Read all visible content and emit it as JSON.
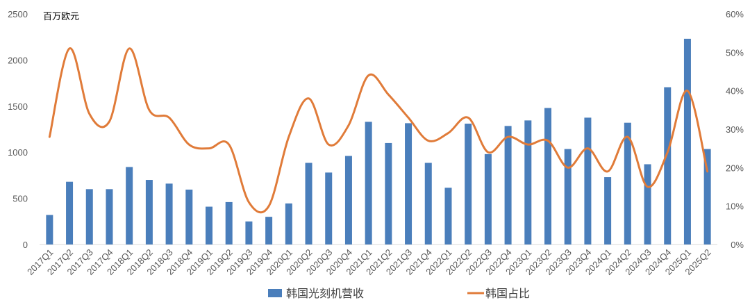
{
  "chart_data": {
    "type": "bar",
    "unit_label": "百万欧元",
    "categories": [
      "2017Q1",
      "2017Q2",
      "2017Q3",
      "2017Q4",
      "2018Q1",
      "2018Q2",
      "2018Q3",
      "2018Q4",
      "2019Q1",
      "2019Q2",
      "2019Q3",
      "2019Q4",
      "2020Q1",
      "2020Q2",
      "2020Q3",
      "2020Q4",
      "2021Q1",
      "2021Q2",
      "2021Q3",
      "2021Q4",
      "2022Q1",
      "2022Q2",
      "2022Q3",
      "2022Q4",
      "2023Q1",
      "2023Q2",
      "2023Q3",
      "2023Q4",
      "2024Q1",
      "2024Q2",
      "2024Q3",
      "2024Q4",
      "2025Q1",
      "2025Q2"
    ],
    "series": [
      {
        "name": "韩国光刻机营收",
        "type": "bar",
        "axis": "left",
        "color": "#4A7EBB",
        "values": [
          320,
          680,
          600,
          600,
          840,
          700,
          660,
          595,
          410,
          460,
          250,
          300,
          445,
          885,
          780,
          960,
          1330,
          1100,
          1315,
          885,
          615,
          1310,
          980,
          1285,
          1345,
          1480,
          1035,
          1375,
          730,
          1320,
          870,
          1705,
          2230,
          1035
        ]
      },
      {
        "name": "韩国占比",
        "type": "line",
        "axis": "right",
        "color": "#E07B39",
        "values": [
          28,
          51,
          34,
          32,
          51,
          35,
          33,
          26,
          25,
          26,
          11,
          10,
          28,
          38,
          26,
          31,
          44,
          39,
          33,
          27,
          29,
          33,
          24,
          28,
          26,
          27,
          20,
          25,
          19,
          28,
          15,
          24,
          40,
          19
        ]
      }
    ],
    "y_left": {
      "min": 0,
      "max": 2500,
      "step": 500,
      "ticks": [
        "0",
        "500",
        "1000",
        "1500",
        "2000",
        "2500"
      ]
    },
    "y_right": {
      "min": 0,
      "max": 60,
      "step": 10,
      "ticks": [
        "0%",
        "10%",
        "20%",
        "30%",
        "40%",
        "50%",
        "60%"
      ]
    },
    "grid": false,
    "legend": {
      "position": "bottom",
      "items": [
        {
          "label": "韩国光刻机营收",
          "kind": "bar",
          "color": "#4A7EBB"
        },
        {
          "label": "韩国占比",
          "kind": "line",
          "color": "#E07B39"
        }
      ]
    }
  }
}
